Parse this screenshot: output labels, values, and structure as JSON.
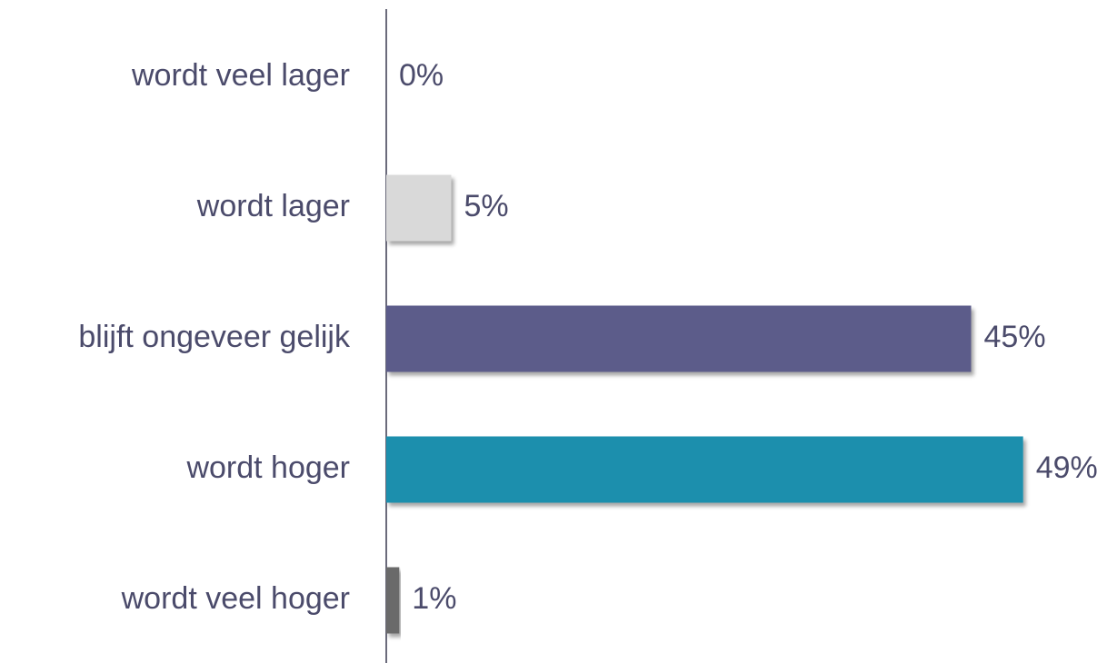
{
  "chart_data": {
    "type": "hbar",
    "categories": [
      "wordt veel lager",
      "wordt lager",
      "blijft ongeveer gelijk",
      "wordt hoger",
      "wordt veel hoger"
    ],
    "values": [
      0,
      5,
      45,
      49,
      1
    ],
    "value_labels": [
      "0%",
      "5%",
      "45%",
      "49%",
      "1%"
    ],
    "colors": [
      "#d9d9d9",
      "#d9d9d9",
      "#5b5b8a",
      "#1f8fad",
      "#6b6b6b"
    ],
    "xlim": [
      0,
      50
    ]
  }
}
